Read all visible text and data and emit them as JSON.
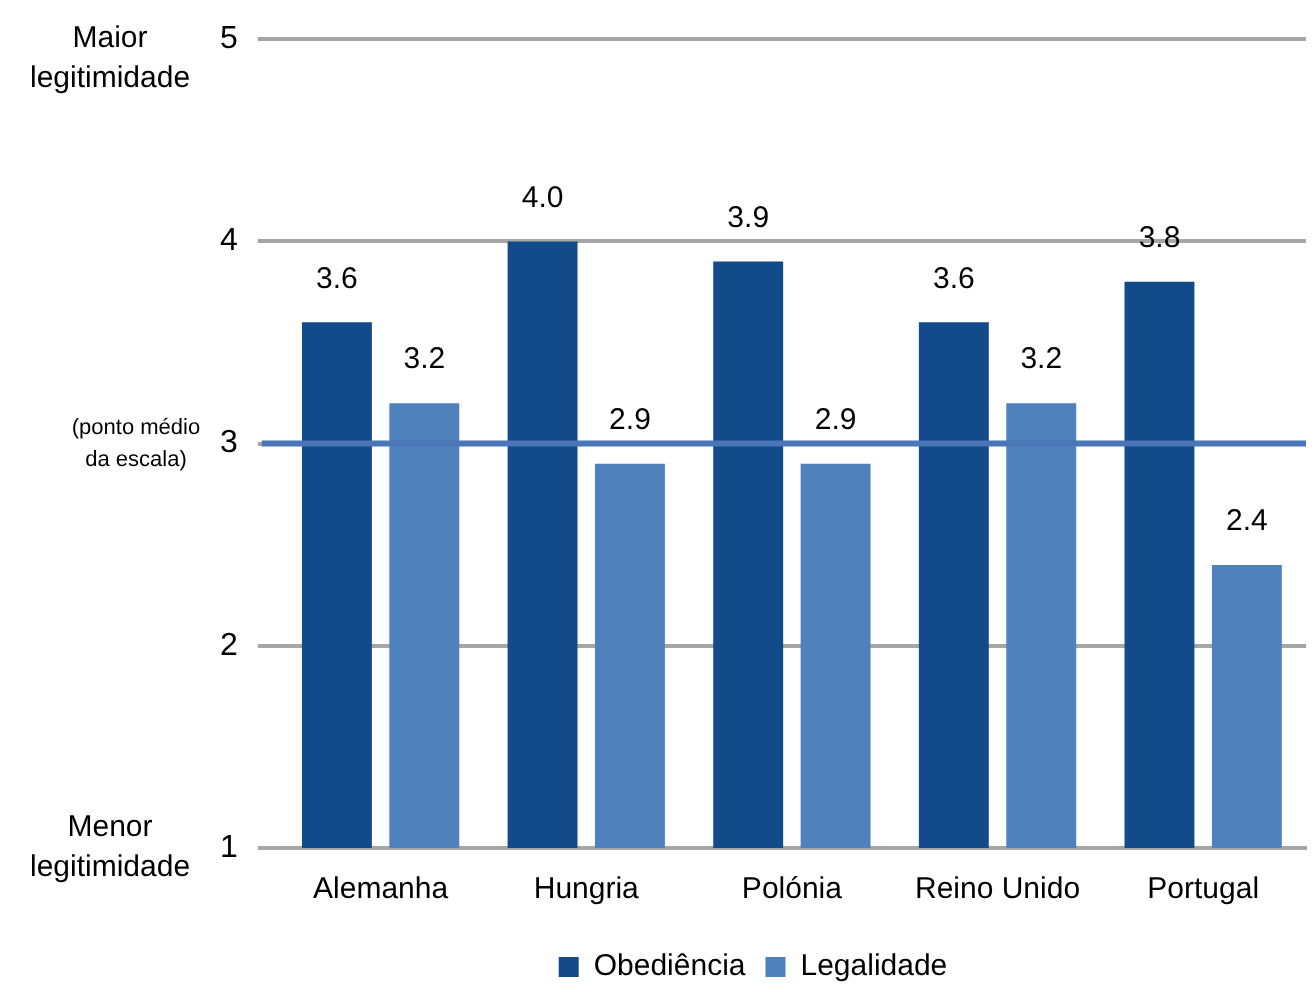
{
  "chart_data": {
    "type": "bar",
    "categories": [
      "Alemanha",
      "Hungria",
      "Polónia",
      "Reino Unido",
      "Portugal"
    ],
    "series": [
      {
        "name": "Obediência",
        "color": "#134a8a",
        "values": [
          3.6,
          4.0,
          3.9,
          3.6,
          3.8
        ],
        "value_labels": [
          "3.6",
          "4.0",
          "3.9",
          "3.6",
          "3.8"
        ]
      },
      {
        "name": "Legalidade",
        "color": "#4f81bd",
        "values": [
          3.2,
          2.9,
          2.9,
          3.2,
          2.4
        ],
        "value_labels": [
          "3.2",
          "2.9",
          "2.9",
          "3.2",
          "2.4"
        ]
      }
    ],
    "ylim": [
      1,
      5
    ],
    "yticks": [
      1,
      2,
      3,
      4,
      5
    ],
    "grid": "y",
    "legend": "bottom",
    "ref_lines": [
      {
        "axis": "y",
        "value": 3,
        "label": "(ponto médio da escala)",
        "color": "#4a76b8"
      }
    ],
    "annotations": [
      "Maior legitimidade",
      "Menor legitimidade"
    ]
  }
}
